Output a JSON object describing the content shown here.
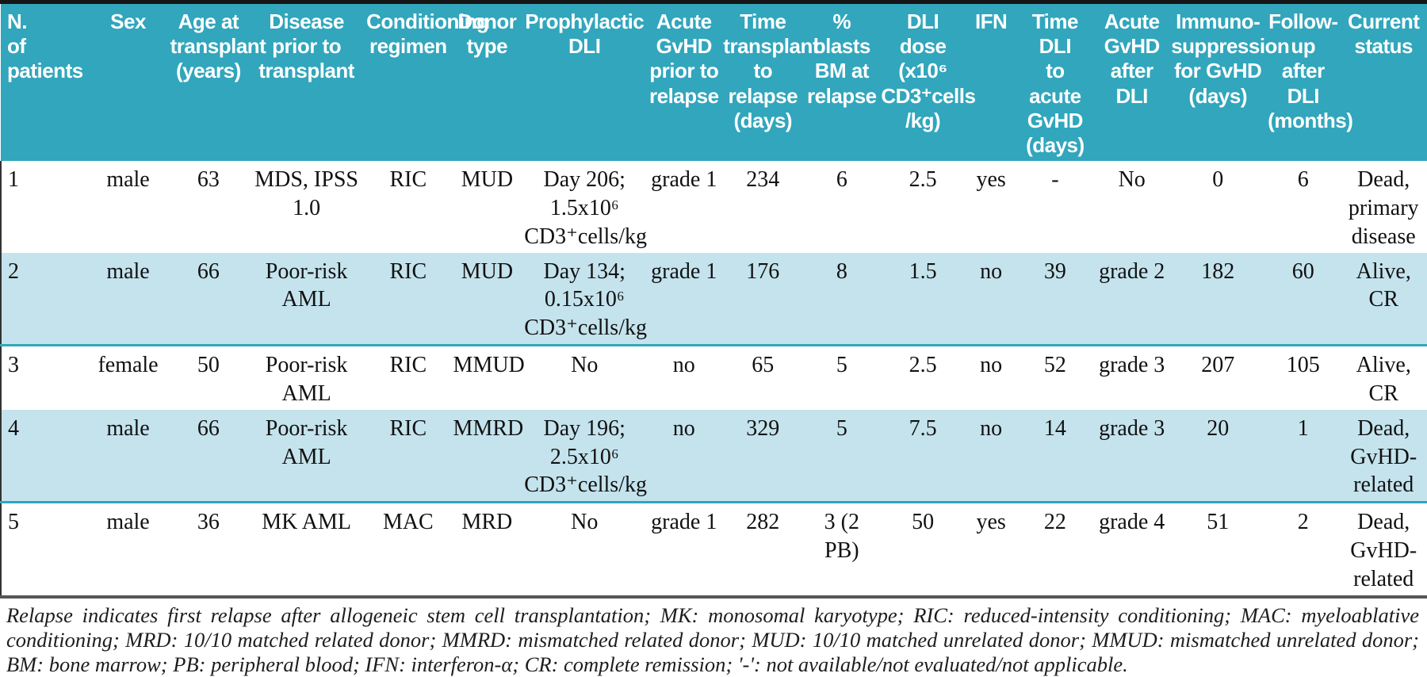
{
  "colors": {
    "header_teal": "#31A6BC",
    "row_blue": "#C4E3ED",
    "top_rule": "#161616",
    "footnote_rule": "#565656",
    "header_text": "#FFFFFF",
    "body_text": "#111111"
  },
  "table": {
    "columns": [
      {
        "id": "n-of-patients",
        "label": "N.\nof\npatients"
      },
      {
        "id": "sex",
        "label": "Sex"
      },
      {
        "id": "age-at-transplant",
        "label": "Age at\ntransplant\n(years)"
      },
      {
        "id": "disease-prior",
        "label": "Disease\nprior to\ntransplant"
      },
      {
        "id": "conditioning-regimen",
        "label": "Conditioning\nregimen"
      },
      {
        "id": "donor-type",
        "label": "Donor\ntype"
      },
      {
        "id": "prophylactic-dli",
        "label": "Prophylactic\nDLI"
      },
      {
        "id": "acute-gvhd-prior",
        "label": "Acute\nGvHD\nprior to\nrelapse"
      },
      {
        "id": "time-to-relapse",
        "label": "Time\ntransplant\nto relapse\n(days)"
      },
      {
        "id": "blasts-bm",
        "label": "% blasts\nBM at\nrelapse"
      },
      {
        "id": "dli-dose",
        "label": "DLI\ndose (x10⁶\nCD3⁺cells\n/kg)"
      },
      {
        "id": "ifn",
        "label": "IFN"
      },
      {
        "id": "time-dli-to-gvhd",
        "label": "Time DLI\nto acute\nGvHD\n(days)"
      },
      {
        "id": "acute-gvhd-after",
        "label": "Acute\nGvHD\nafter\nDLI"
      },
      {
        "id": "immunosuppression",
        "label": "Immuno-\nsuppression\nfor GvHD\n(days)"
      },
      {
        "id": "follow-up",
        "label": "Follow-up\nafter DLI\n(months)"
      },
      {
        "id": "current-status",
        "label": "Current\nstatus"
      }
    ],
    "rows": [
      {
        "shaded": false,
        "cells": [
          "1",
          "male",
          "63",
          "MDS, IPSS 1.0",
          "RIC",
          "MUD",
          "Day 206; 1.5x10⁶\nCD3⁺cells/kg",
          "grade 1",
          "234",
          "6",
          "2.5",
          "yes",
          "-",
          "No",
          "0",
          "6",
          "Dead,\nprimary\ndisease"
        ]
      },
      {
        "shaded": true,
        "cells": [
          "2",
          "male",
          "66",
          "Poor-risk AML",
          "RIC",
          "MUD",
          "Day 134; 0.15x10⁶\nCD3⁺cells/kg",
          "grade 1",
          "176",
          "8",
          "1.5",
          "no",
          "39",
          "grade 2",
          "182",
          "60",
          "Alive, CR"
        ]
      },
      {
        "shaded": false,
        "cells": [
          "3",
          "female",
          "50",
          "Poor-risk AML",
          "RIC",
          "MMUD",
          "No",
          "no",
          "65",
          "5",
          "2.5",
          "no",
          "52",
          "grade 3",
          "207",
          "105",
          "Alive, CR"
        ]
      },
      {
        "shaded": true,
        "cells": [
          "4",
          "male",
          "66",
          "Poor-risk AML",
          "RIC",
          "MMRD",
          "Day 196; 2.5x10⁶\nCD3⁺cells/kg",
          "no",
          "329",
          "5",
          "7.5",
          "no",
          "14",
          "grade 3",
          "20",
          "1",
          "Dead,\nGvHD-\nrelated"
        ]
      },
      {
        "shaded": false,
        "cells": [
          "5",
          "male",
          "36",
          "MK AML",
          "MAC",
          "MRD",
          "No",
          "grade 1",
          "282",
          "3 (2 PB)",
          "50",
          "yes",
          "22",
          "grade 4",
          "51",
          "2",
          "Dead,\nGvHD-\nrelated"
        ]
      }
    ]
  },
  "footnote": {
    "text": "Relapse indicates first relapse after allogeneic stem cell transplantation; MK: monosomal karyotype; RIC: reduced-intensity conditioning; MAC: myeloablative conditioning; MRD: 10/10 matched related donor; MMRD: mismatched related donor; MUD: 10/10 matched unrelated donor; MMUD: mismatched unrelated donor; BM: bone marrow; PB: peripheral blood; IFN: interferon-α; CR: complete remission; '-': not available/not evaluated/not applicable."
  }
}
